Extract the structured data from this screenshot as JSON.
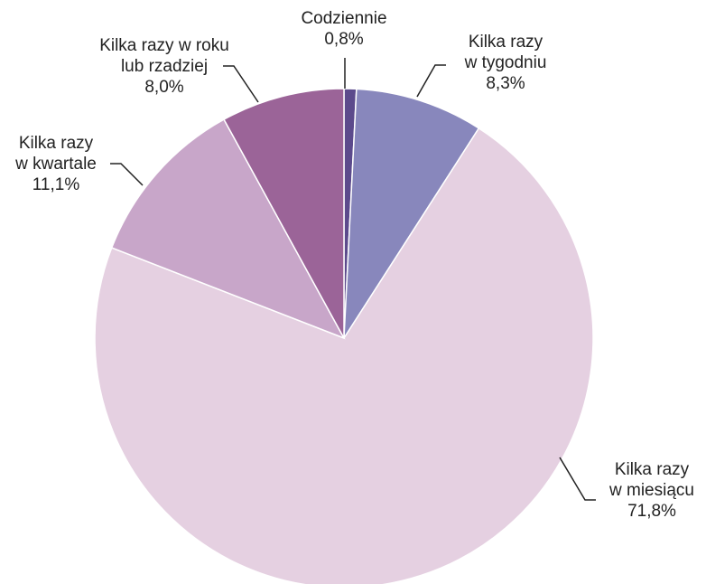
{
  "chart_data": {
    "type": "pie",
    "title": "",
    "start": "12 o'clock, clockwise",
    "slices": [
      {
        "label_lines": [
          "Codziennie"
        ],
        "value": 0.8,
        "value_text": "0,8%",
        "color": "#5c4a8c"
      },
      {
        "label_lines": [
          "Kilka razy",
          "w tygodniu"
        ],
        "value": 8.3,
        "value_text": "8,3%",
        "color": "#8887bc"
      },
      {
        "label_lines": [
          "Kilka razy",
          "w miesiącu"
        ],
        "value": 71.8,
        "value_text": "71,8%",
        "color": "#e5d0e1"
      },
      {
        "label_lines": [
          "Kilka razy",
          "w kwartale"
        ],
        "value": 11.1,
        "value_text": "11,1%",
        "color": "#c8a6c9"
      },
      {
        "label_lines": [
          "Kilka razy w roku",
          "lub rzadziej"
        ],
        "value": 8.0,
        "value_text": "8,0%",
        "color": "#9b6498"
      }
    ]
  }
}
